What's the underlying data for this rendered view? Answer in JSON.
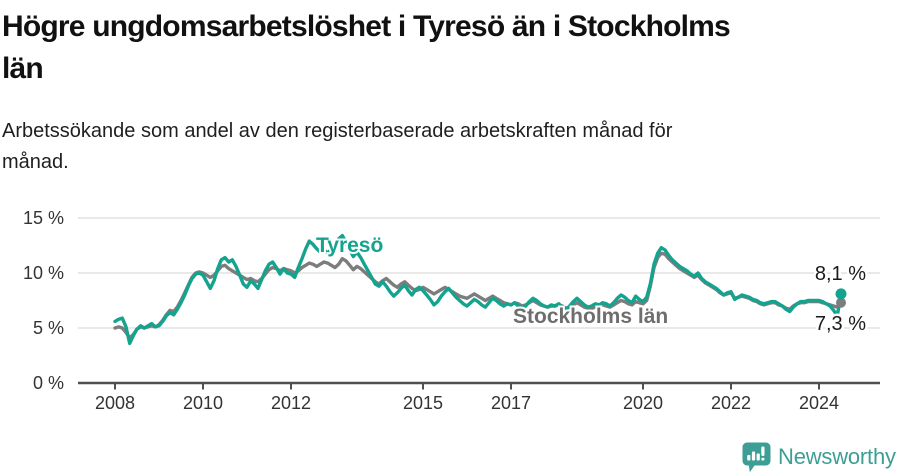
{
  "header": {
    "title_lines": [
      "Högre ungdomsarbetslöshet i Tyresö än i Stockholms",
      "län"
    ],
    "subtitle_lines": [
      "Arbetssökande som andel av den registerbaserade arbetskraften månad för",
      "månad."
    ]
  },
  "chart_data": {
    "type": "line",
    "title": "Högre ungdomsarbetslöshet i Tyresö än i Stockholms län",
    "subtitle": "Arbetssökande som andel av den registerbaserade arbetskraften månad för månad.",
    "unit": "%",
    "frequency": "monthly",
    "x_start": "2008-01",
    "x_end": "2024-07",
    "ylim": [
      0,
      15
    ],
    "grid": true,
    "legend_position": "inline-labels",
    "y_ticks": [
      {
        "value": 15,
        "label": "15 %"
      },
      {
        "value": 10,
        "label": "10 %"
      },
      {
        "value": 5,
        "label": "5 %"
      },
      {
        "value": 0,
        "label": "0 %"
      }
    ],
    "x_ticks": [
      {
        "year": 2008,
        "label": "2008"
      },
      {
        "year": 2010,
        "label": "2010"
      },
      {
        "year": 2012,
        "label": "2012"
      },
      {
        "year": 2015,
        "label": "2015"
      },
      {
        "year": 2017,
        "label": "2017"
      },
      {
        "year": 2020,
        "label": "2020"
      },
      {
        "year": 2022,
        "label": "2022"
      },
      {
        "year": 2024,
        "label": "2024"
      }
    ],
    "series": [
      {
        "id": "stockholm",
        "name": "Stockholms län",
        "color": "#7d7d7d",
        "end_value": 7.3,
        "end_label": "7,3 %",
        "values": [
          5.0,
          5.1,
          5.0,
          4.6,
          4.1,
          4.4,
          4.9,
          5.1,
          5.0,
          5.1,
          5.2,
          5.1,
          5.3,
          5.7,
          6.2,
          6.6,
          6.5,
          6.9,
          7.5,
          8.2,
          8.9,
          9.6,
          10.0,
          10.1,
          10.0,
          9.8,
          9.6,
          9.8,
          10.2,
          10.6,
          10.7,
          10.4,
          10.2,
          10.0,
          9.8,
          9.6,
          9.4,
          9.5,
          9.3,
          9.2,
          9.5,
          9.9,
          10.3,
          10.5,
          10.4,
          10.2,
          10.4,
          10.3,
          10.2,
          10.0,
          10.2,
          10.5,
          10.7,
          10.9,
          10.8,
          10.6,
          10.8,
          11.0,
          10.9,
          10.7,
          10.5,
          10.8,
          11.3,
          11.1,
          10.7,
          10.3,
          10.6,
          10.4,
          10.1,
          9.8,
          9.5,
          9.2,
          9.0,
          9.3,
          9.5,
          9.2,
          8.9,
          8.7,
          9.0,
          9.2,
          8.9,
          8.6,
          8.4,
          8.5,
          8.7,
          8.5,
          8.3,
          8.1,
          8.3,
          8.5,
          8.7,
          8.5,
          8.3,
          8.1,
          7.9,
          7.8,
          7.7,
          7.9,
          8.1,
          7.9,
          7.7,
          7.5,
          7.7,
          7.9,
          7.7,
          7.5,
          7.3,
          7.2,
          7.1,
          7.3,
          7.2,
          7.0,
          7.1,
          7.3,
          7.5,
          7.3,
          7.1,
          7.0,
          6.9,
          7.0,
          7.0,
          7.1,
          7.0,
          6.8,
          6.9,
          7.1,
          7.3,
          7.1,
          6.9,
          6.8,
          6.8,
          6.9,
          7.0,
          7.1,
          7.0,
          6.9,
          7.1,
          7.3,
          7.5,
          7.4,
          7.2,
          7.1,
          7.4,
          7.3,
          7.2,
          7.5,
          8.8,
          10.5,
          11.4,
          11.8,
          11.7,
          11.3,
          11.0,
          10.7,
          10.4,
          10.2,
          10.0,
          9.8,
          9.6,
          9.8,
          9.4,
          9.1,
          8.9,
          8.7,
          8.5,
          8.2,
          8.0,
          8.1,
          8.2,
          7.7,
          7.8,
          7.9,
          7.8,
          7.7,
          7.5,
          7.4,
          7.2,
          7.1,
          7.2,
          7.3,
          7.3,
          7.1,
          7.0,
          6.8,
          6.7,
          7.0,
          7.2,
          7.3,
          7.3,
          7.4,
          7.4,
          7.4,
          7.4,
          7.3,
          7.2,
          7.1,
          7.0,
          6.9,
          7.3
        ]
      },
      {
        "id": "tyreso",
        "name": "Tyresö",
        "color": "#14a38e",
        "end_value": 8.1,
        "end_label": "8,1 %",
        "values": [
          5.6,
          5.8,
          5.9,
          5.1,
          3.6,
          4.3,
          4.9,
          5.2,
          5.0,
          5.2,
          5.4,
          5.1,
          5.2,
          5.6,
          6.1,
          6.4,
          6.2,
          6.7,
          7.3,
          8.0,
          8.8,
          9.5,
          9.9,
          10.0,
          9.8,
          9.2,
          8.6,
          9.3,
          10.4,
          11.2,
          11.4,
          11.0,
          11.2,
          10.6,
          9.8,
          9.0,
          8.7,
          9.3,
          9.0,
          8.6,
          9.4,
          10.2,
          10.8,
          11.0,
          10.5,
          9.9,
          10.4,
          10.0,
          9.9,
          9.6,
          10.5,
          11.3,
          12.2,
          12.9,
          12.6,
          12.2,
          11.9,
          12.1,
          11.8,
          12.2,
          12.6,
          13.1,
          13.4,
          12.8,
          12.1,
          11.5,
          11.9,
          11.4,
          10.8,
          10.2,
          9.6,
          9.0,
          8.8,
          9.2,
          8.8,
          8.3,
          7.9,
          8.2,
          8.6,
          8.9,
          8.4,
          8.0,
          8.5,
          8.7,
          8.4,
          8.0,
          7.6,
          7.1,
          7.4,
          7.9,
          8.3,
          8.6,
          8.2,
          7.8,
          7.5,
          7.2,
          7.0,
          7.3,
          7.6,
          7.4,
          7.1,
          6.9,
          7.3,
          7.7,
          7.5,
          7.2,
          7.0,
          7.2,
          7.1,
          7.3,
          7.0,
          6.8,
          7.0,
          7.4,
          7.7,
          7.5,
          7.2,
          7.0,
          6.9,
          7.1,
          7.0,
          7.2,
          6.9,
          6.7,
          7.0,
          7.4,
          7.7,
          7.4,
          7.1,
          6.9,
          7.0,
          7.2,
          7.1,
          7.3,
          7.2,
          7.0,
          7.3,
          7.7,
          8.0,
          7.8,
          7.5,
          7.3,
          7.9,
          7.6,
          7.4,
          7.8,
          9.0,
          10.8,
          11.8,
          12.3,
          12.1,
          11.6,
          11.2,
          10.9,
          10.6,
          10.4,
          10.2,
          9.9,
          9.7,
          10.0,
          9.5,
          9.2,
          9.0,
          8.8,
          8.6,
          8.3,
          8.0,
          8.2,
          8.3,
          7.6,
          7.8,
          8.0,
          7.9,
          7.8,
          7.6,
          7.5,
          7.3,
          7.2,
          7.3,
          7.4,
          7.4,
          7.2,
          7.0,
          6.7,
          6.5,
          6.9,
          7.2,
          7.4,
          7.4,
          7.5,
          7.5,
          7.5,
          7.5,
          7.4,
          7.2,
          7.0,
          6.6,
          6.1,
          8.1
        ]
      }
    ]
  },
  "branding": {
    "logo_text": "Newsworthy",
    "logo_color": "#3d9e96",
    "logo_icon": "speech-bubble-bar-chart-exclamation"
  },
  "colors": {
    "accent_teal": "#14a38e",
    "series_gray": "#7d7d7d",
    "gridline": "#dcdcdc",
    "axis": "#4f4f4f",
    "text": "#1a1a1a"
  }
}
